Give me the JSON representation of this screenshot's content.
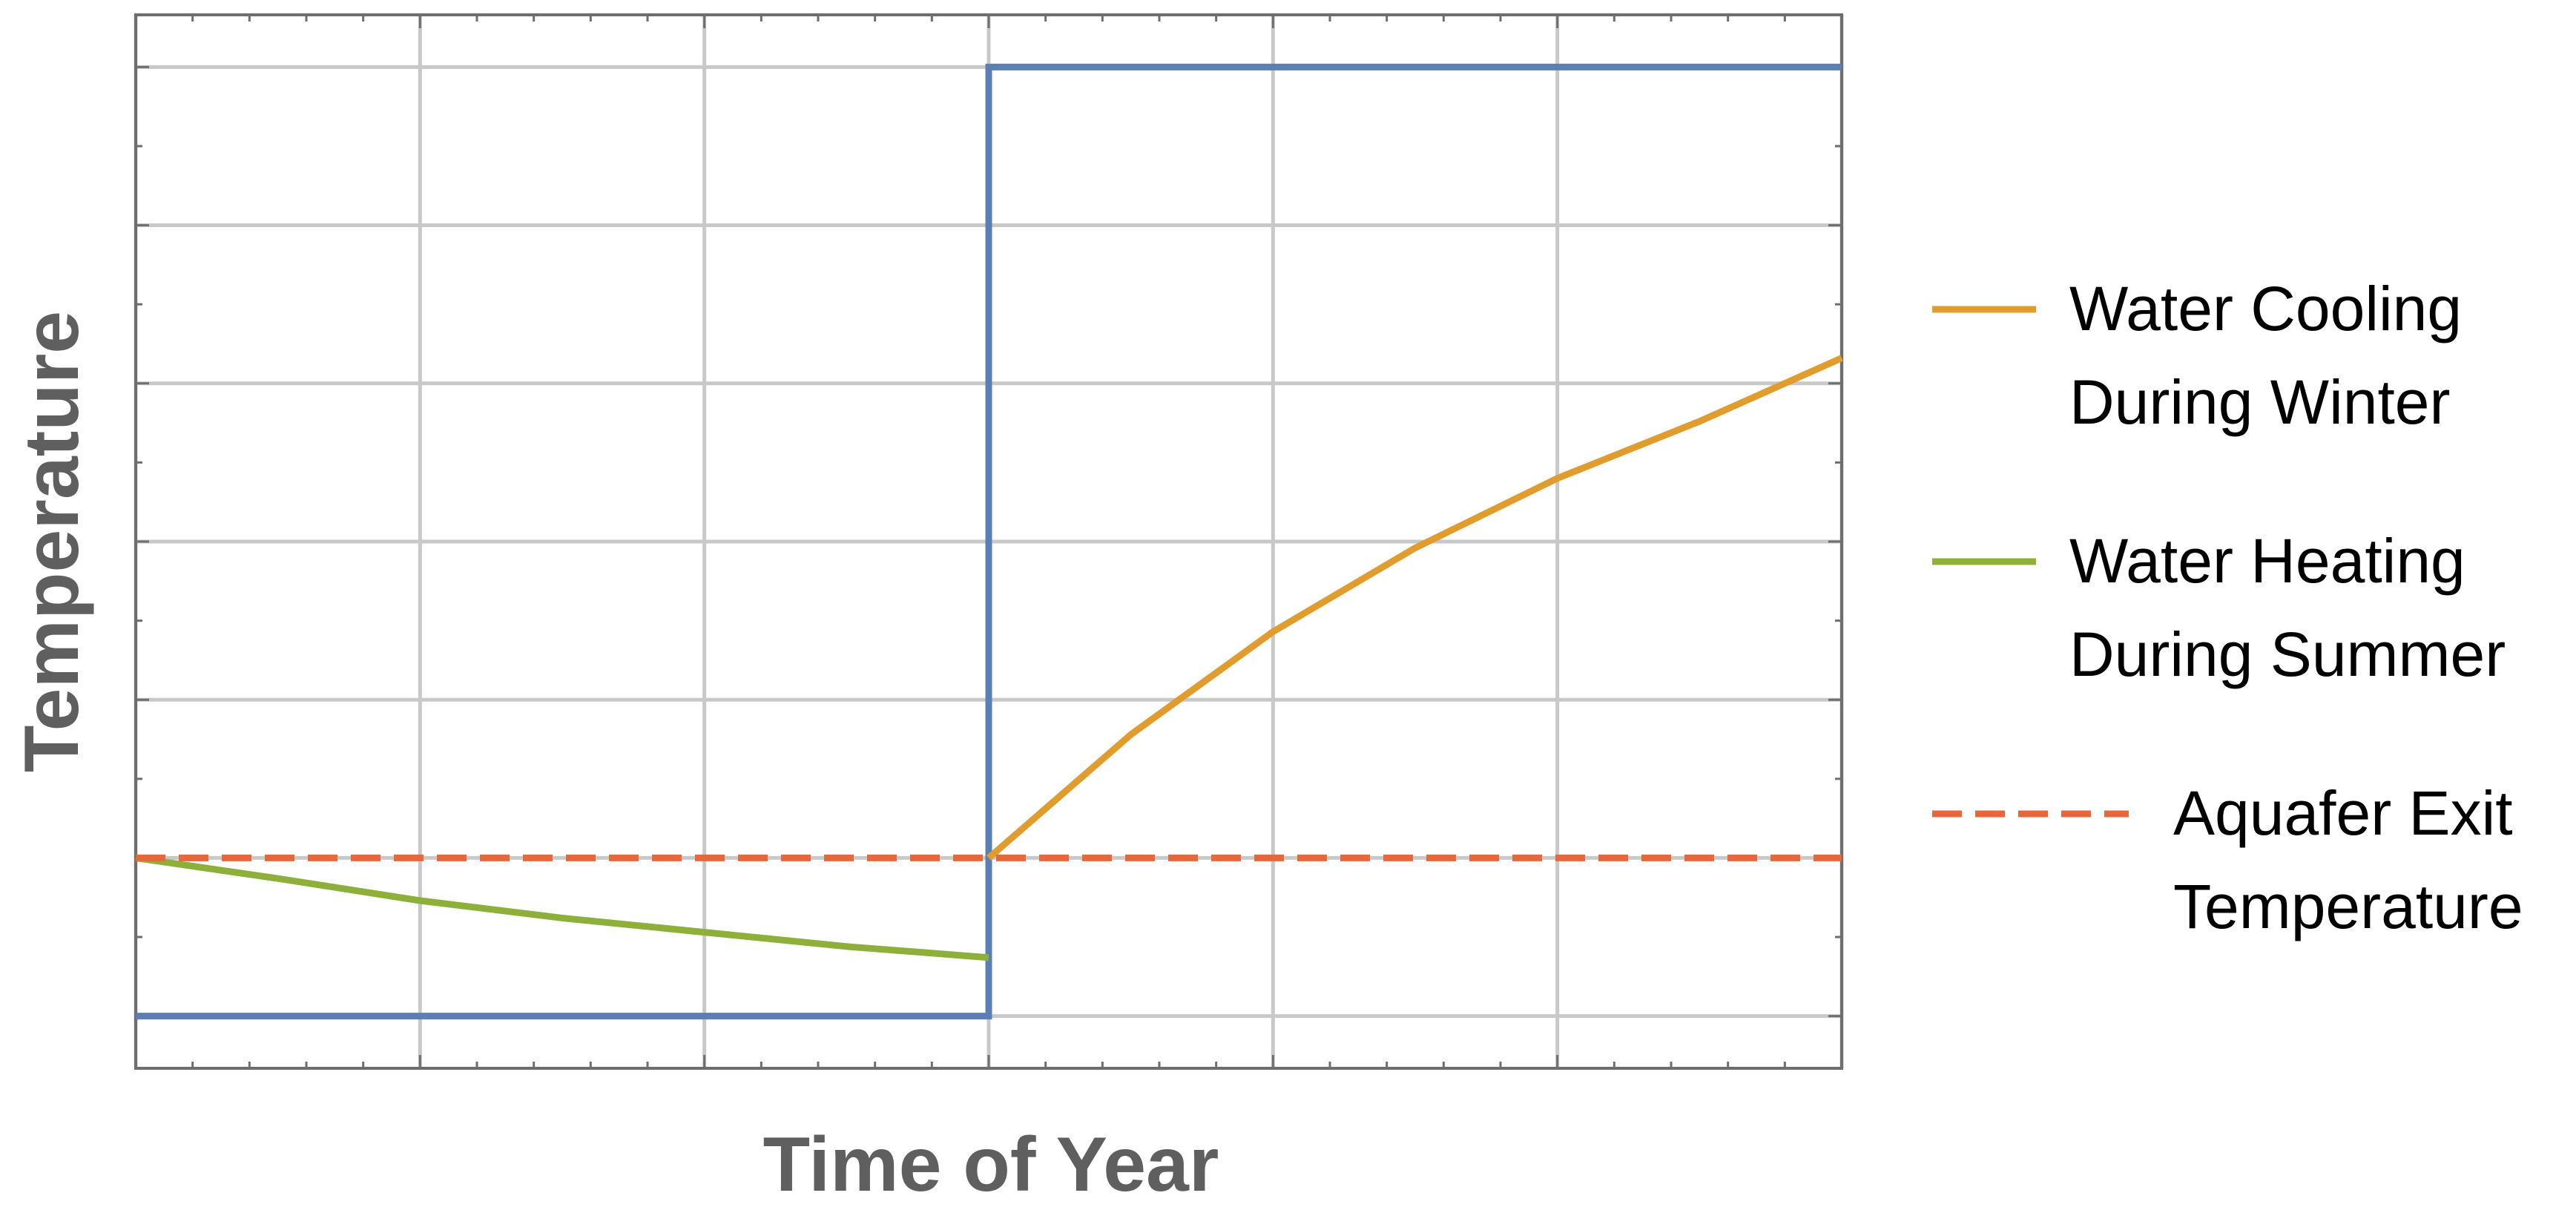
{
  "chart_data": {
    "type": "line",
    "xlabel": "Time of Year",
    "ylabel": "Temperature",
    "xlim": [
      0,
      6
    ],
    "ylim": [
      -0.33,
      6.33
    ],
    "x_ticks": [
      0,
      1,
      2,
      3,
      4,
      5,
      6
    ],
    "y_ticks": [
      0,
      1,
      2,
      3,
      4,
      5,
      6
    ],
    "grid": true,
    "legend_position": "right",
    "series": [
      {
        "key": "step",
        "color": "#5b7fb5",
        "style": "solid",
        "x": [
          0,
          3,
          3,
          6
        ],
        "y": [
          0,
          0,
          6,
          6
        ]
      },
      {
        "key": "winter",
        "name_lines": [
          "Water Cooling",
          "During Winter"
        ],
        "color": "#e09c2c",
        "style": "solid",
        "x": [
          3,
          3.5,
          4,
          4.5,
          5,
          5.5,
          6
        ],
        "y": [
          1.0,
          1.78,
          2.43,
          2.96,
          3.4,
          3.76,
          4.16
        ]
      },
      {
        "key": "summer",
        "name_lines": [
          "Water Heating",
          "During Summer"
        ],
        "color": "#8cb03a",
        "style": "solid",
        "x": [
          0,
          0.5,
          1,
          1.5,
          2,
          2.5,
          3
        ],
        "y": [
          1.0,
          0.87,
          0.73,
          0.62,
          0.53,
          0.44,
          0.37
        ]
      },
      {
        "key": "exit",
        "name_lines": [
          "Aquafer Exit",
          "Temperature"
        ],
        "color": "#e5683a",
        "style": "dashed",
        "x": [
          0,
          6
        ],
        "y": [
          1.0,
          1.0
        ]
      }
    ]
  }
}
